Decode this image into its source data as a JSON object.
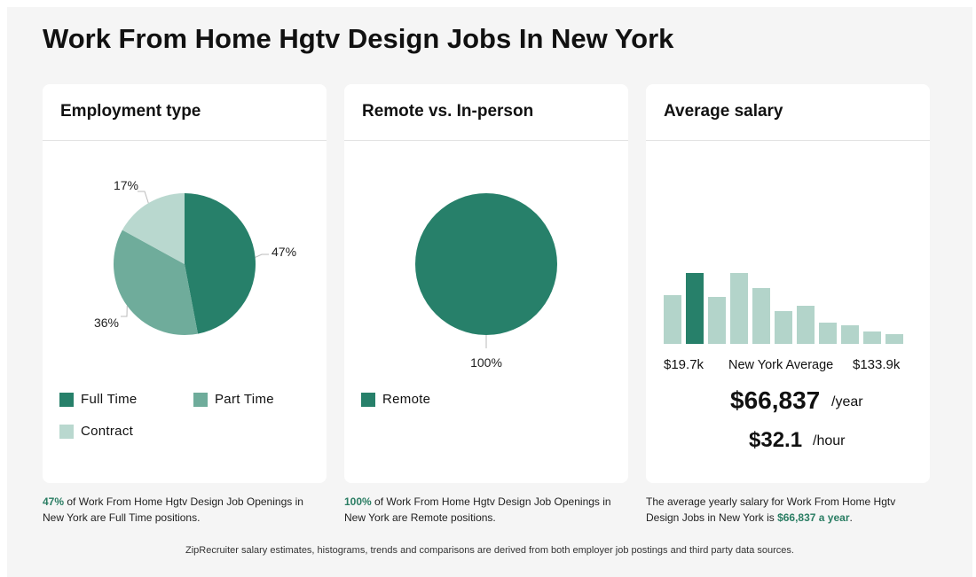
{
  "page": {
    "title": "Work From Home Hgtv Design Jobs In New York"
  },
  "colors": {
    "dark": "#27806a",
    "mid": "#6fac9b",
    "light": "#b9d8cf",
    "accent": "#2a7d63"
  },
  "cards": {
    "employment": {
      "title": "Employment type",
      "legend": [
        {
          "label": "Full Time",
          "color": "#27806a"
        },
        {
          "label": "Part Time",
          "color": "#6fac9b"
        },
        {
          "label": "Contract",
          "color": "#b9d8cf"
        }
      ],
      "caption": {
        "highlight": "47%",
        "text": " of Work From Home Hgtv Design Job Openings in New York are Full Time positions."
      }
    },
    "remote": {
      "title": "Remote vs. In-person",
      "legend": [
        {
          "label": "Remote",
          "color": "#27806a"
        }
      ],
      "caption": {
        "highlight": "100%",
        "text": " of Work From Home Hgtv Design Job Openings in New York are Remote positions."
      }
    },
    "salary": {
      "title": "Average salary",
      "min_label": "$19.7k",
      "avg_label": "New York Average",
      "max_label": "$133.9k",
      "yearly": "$66,837",
      "yearly_unit": "/year",
      "hourly": "$32.1",
      "hourly_unit": "/hour",
      "caption": {
        "text": "The average yearly salary for Work From Home Hgtv Design Jobs in New York is ",
        "highlight": "$66,837 a year",
        "end": "."
      }
    }
  },
  "footer": "ZipRecruiter salary estimates, histograms, trends and comparisons are derived from both employer job postings and third party data sources.",
  "chart_data": [
    {
      "type": "pie",
      "title": "Employment type",
      "categories": [
        "Full Time",
        "Part Time",
        "Contract"
      ],
      "values": [
        47,
        36,
        17
      ],
      "labels": [
        "47%",
        "36%",
        "17%"
      ],
      "colors": [
        "#27806a",
        "#6fac9b",
        "#b9d8cf"
      ]
    },
    {
      "type": "pie",
      "title": "Remote vs. In-person",
      "categories": [
        "Remote"
      ],
      "values": [
        100
      ],
      "labels": [
        "100%"
      ],
      "colors": [
        "#27806a"
      ]
    },
    {
      "type": "bar",
      "title": "Average salary",
      "values": [
        0.55,
        0.8,
        0.53,
        0.8,
        0.63,
        0.37,
        0.43,
        0.24,
        0.21,
        0.14,
        0.11
      ],
      "highlight_index": 1,
      "colors": {
        "normal": "#b3d4ca",
        "highlight": "#27806a"
      }
    }
  ]
}
